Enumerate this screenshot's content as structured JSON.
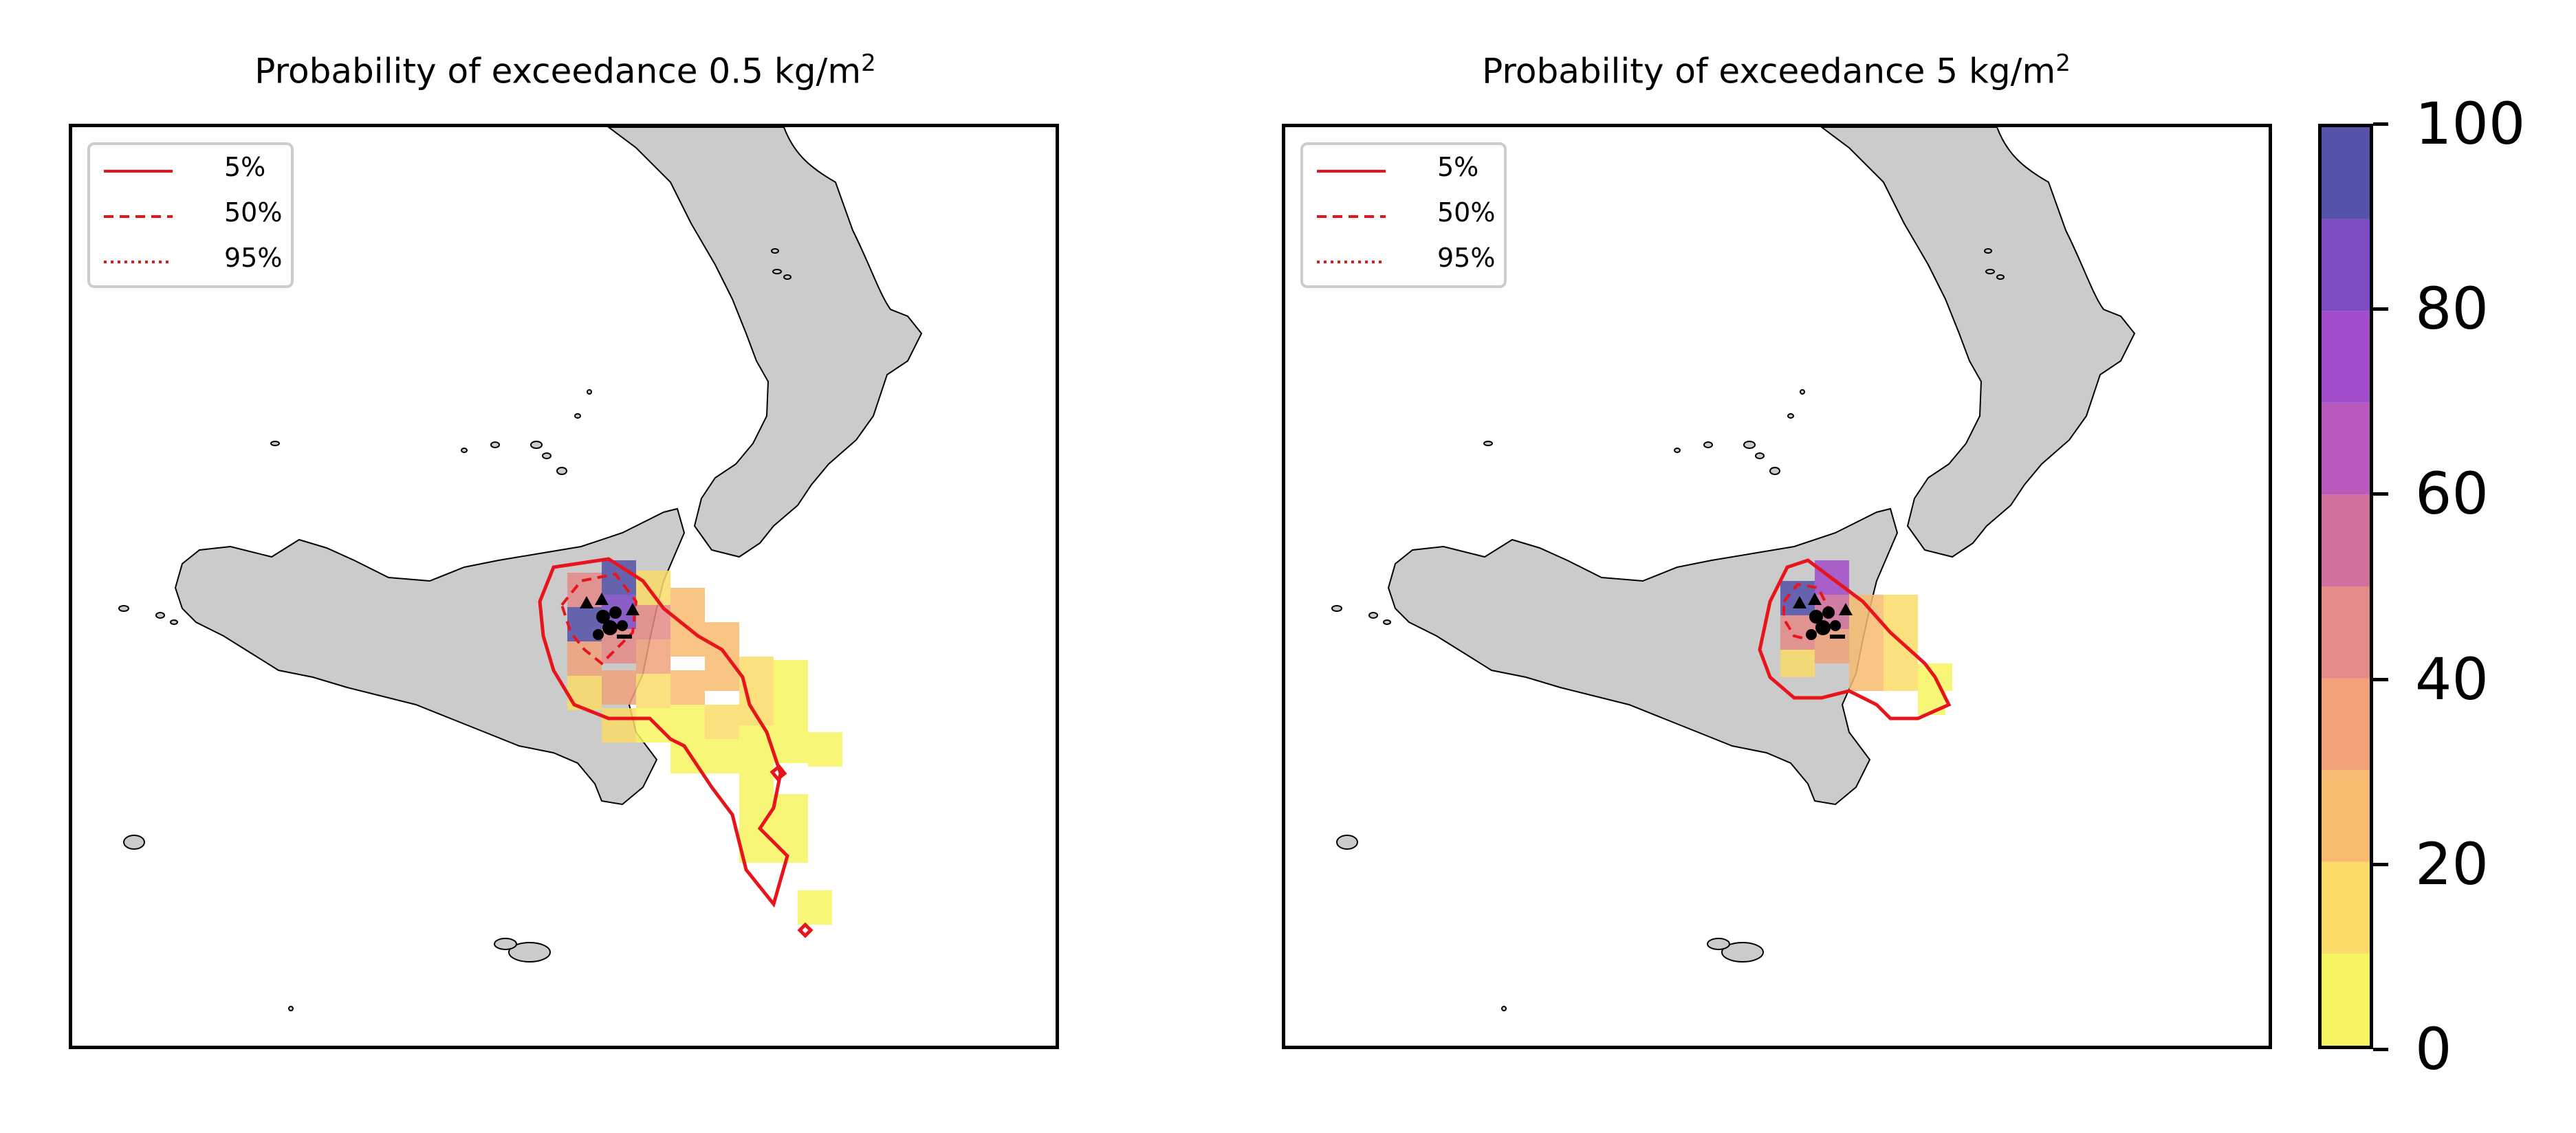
{
  "panels": [
    {
      "title": "Probability of exceedance 0.5 kg/m",
      "title_sup": "2"
    },
    {
      "title": "Probability of exceedance 5 kg/m",
      "title_sup": "2"
    }
  ],
  "legend": {
    "entries": [
      {
        "label": "5%",
        "style": "solid"
      },
      {
        "label": "50%",
        "style": "dashed"
      },
      {
        "label": "95%",
        "style": "dotted"
      }
    ],
    "line_color": "#e8141c"
  },
  "colorbar": {
    "ticks": [
      "0",
      "20",
      "40",
      "60",
      "80",
      "100"
    ],
    "min": 0,
    "max": 100,
    "bins": [
      {
        "from": 0,
        "to": 10,
        "color": "#f6f55f"
      },
      {
        "from": 10,
        "to": 20,
        "color": "#fbdc68"
      },
      {
        "from": 20,
        "to": 30,
        "color": "#f7bc6f"
      },
      {
        "from": 30,
        "to": 40,
        "color": "#f1a27a"
      },
      {
        "from": 40,
        "to": 50,
        "color": "#e48a88"
      },
      {
        "from": 50,
        "to": 60,
        "color": "#d1709f"
      },
      {
        "from": 60,
        "to": 70,
        "color": "#ba5abd"
      },
      {
        "from": 70,
        "to": 80,
        "color": "#a24dca"
      },
      {
        "from": 80,
        "to": 90,
        "color": "#7e4cc4"
      },
      {
        "from": 90,
        "to": 100,
        "color": "#5552a9"
      }
    ]
  },
  "colors": {
    "land": "#cbcbcb",
    "coast": "#000000",
    "contour": "#e8141c"
  }
}
